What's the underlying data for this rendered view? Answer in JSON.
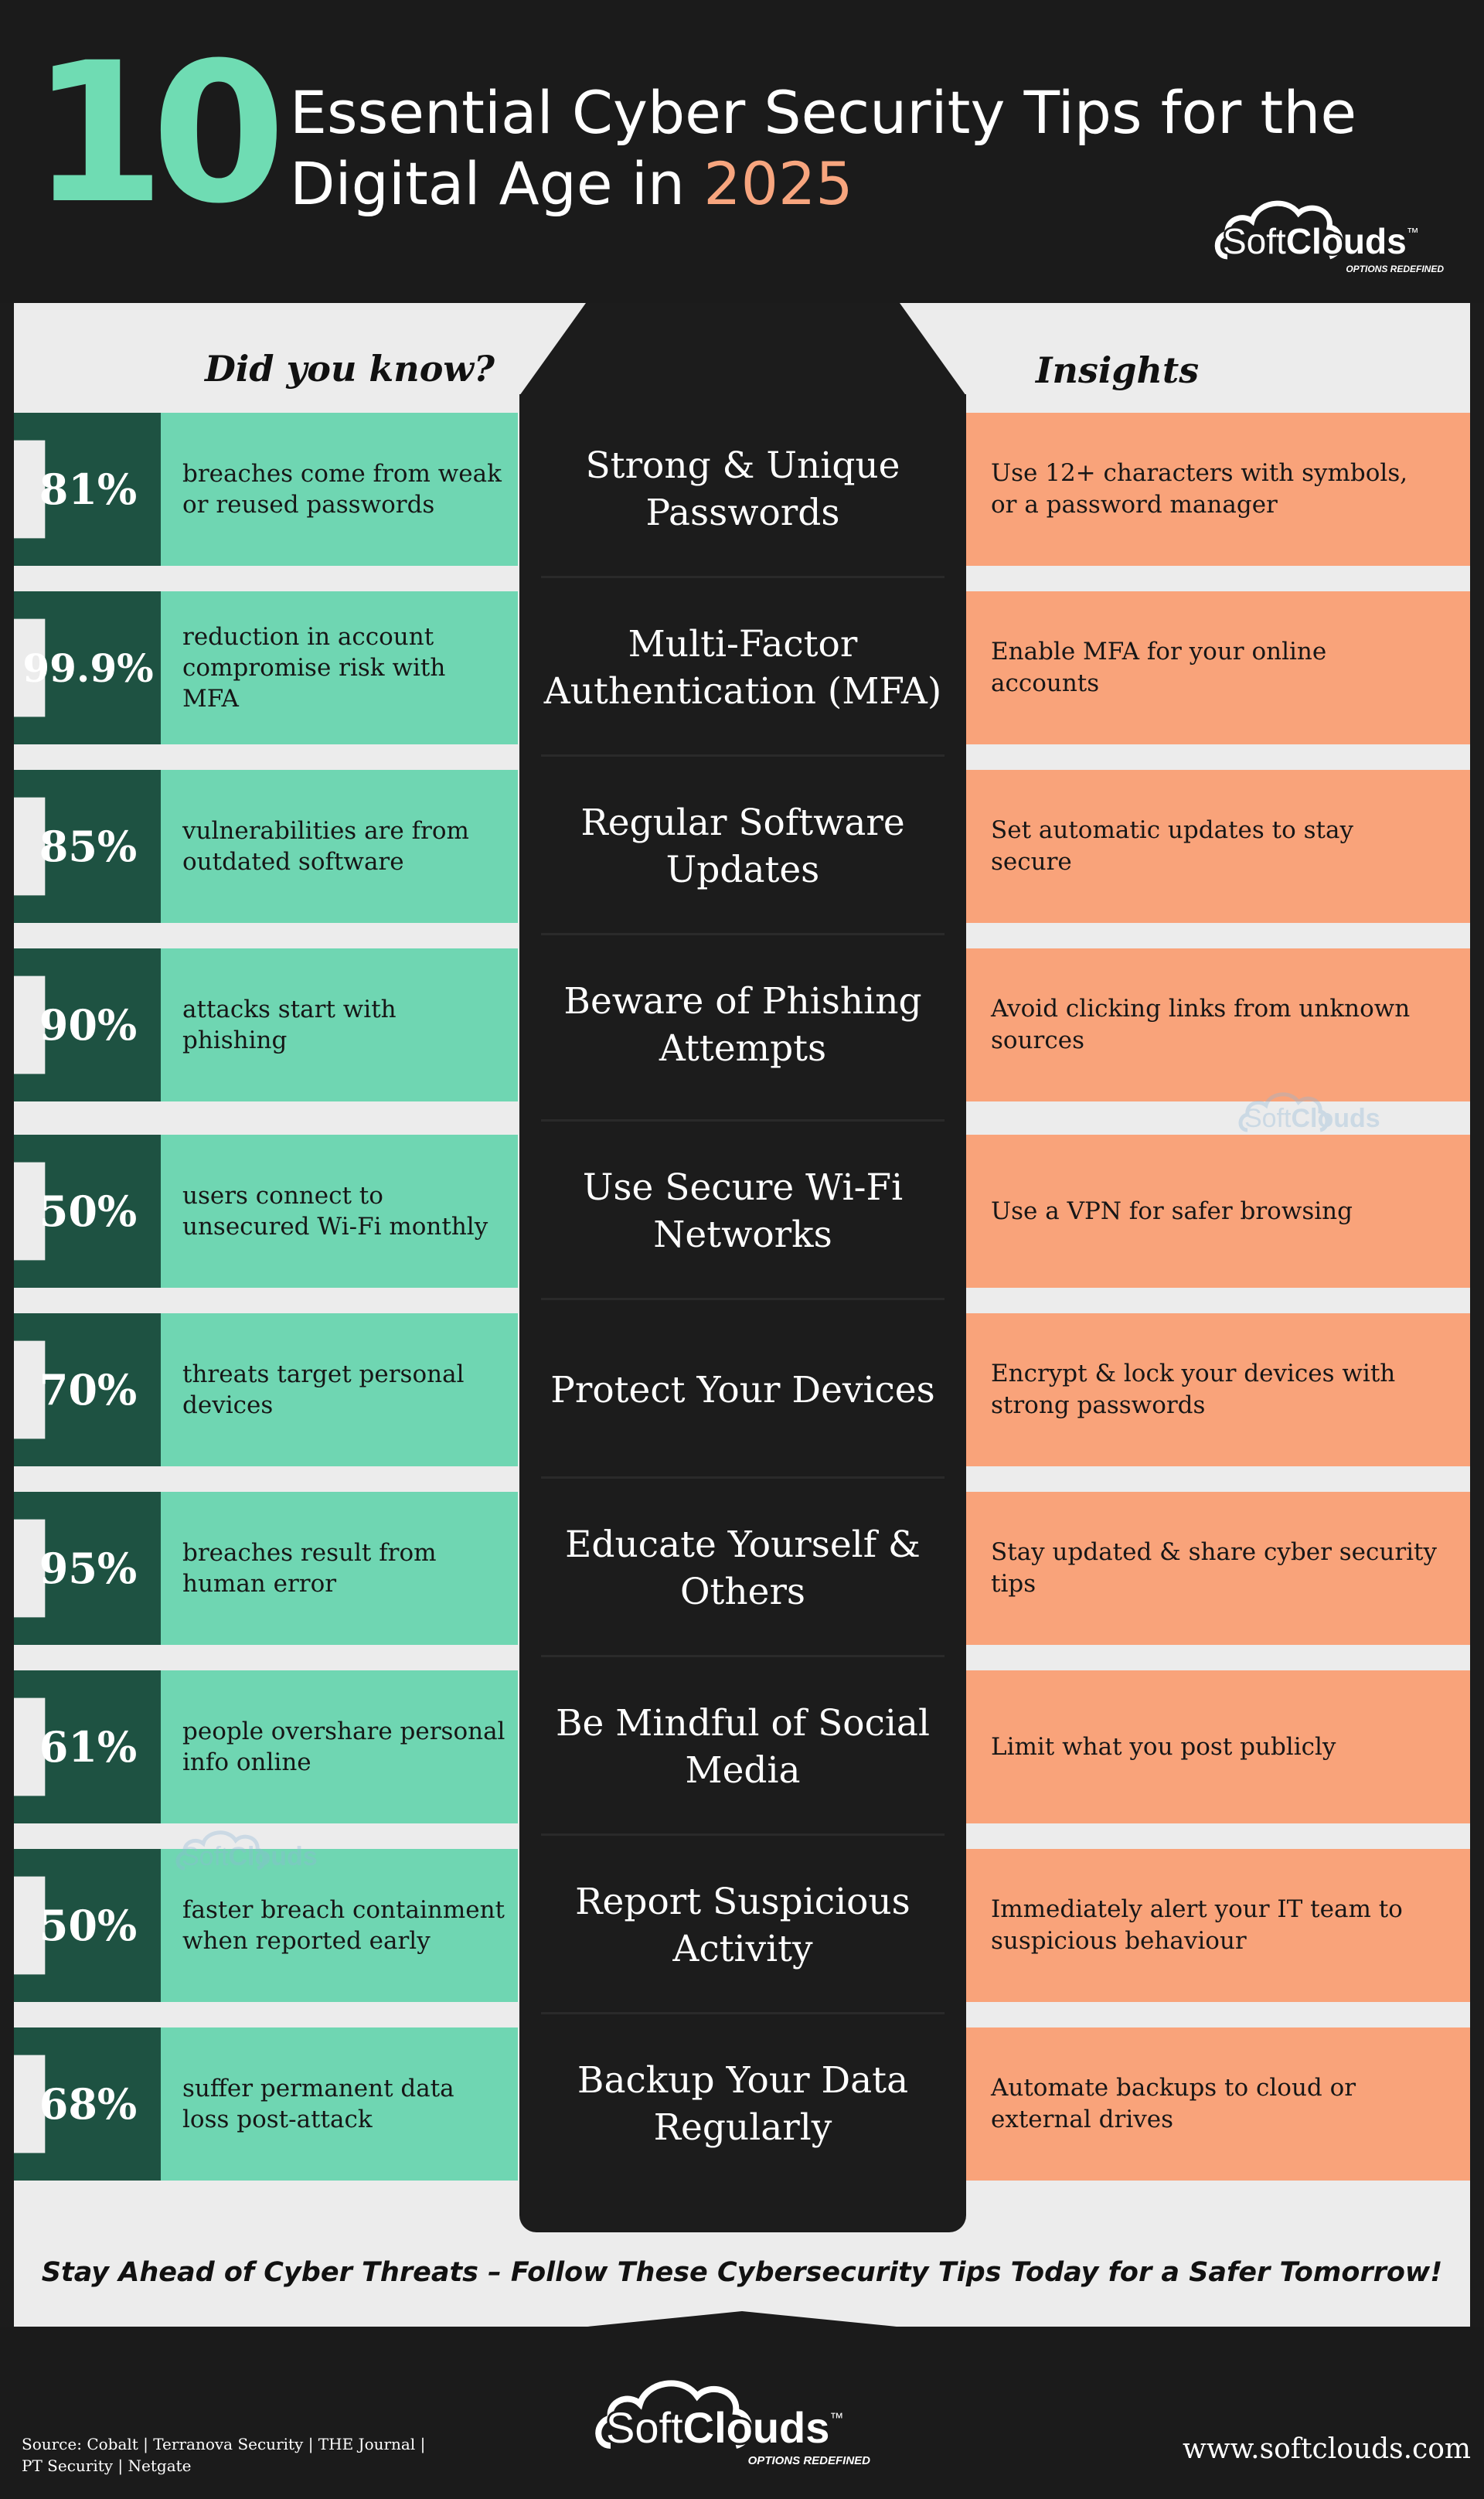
{
  "header": {
    "number": "10",
    "title_part1": "Essential Cyber Security Tips for the",
    "title_part2": "Digital Age in",
    "title_year": "2025"
  },
  "brand": {
    "soft": "Soft",
    "clouds": "Clouds",
    "tm": "™",
    "tagline": "OPTIONS REDEFINED"
  },
  "left_header": "Did you know?",
  "right_header": "Insights",
  "rows": [
    {
      "pct": "81%",
      "fact": "breaches come from weak or reused passwords",
      "tip": "Strong & Unique Passwords",
      "insight": "Use 12+ characters with symbols, or a password manager"
    },
    {
      "pct": "99.9%",
      "fact": "reduction in account compromise risk with MFA",
      "tip": "Multi-Factor Authentication (MFA)",
      "insight": "Enable MFA for your online accounts"
    },
    {
      "pct": "85%",
      "fact": "vulnerabilities are from outdated software",
      "tip": "Regular Software Updates",
      "insight": "Set automatic updates to stay secure"
    },
    {
      "pct": "90%",
      "fact": "attacks start with phishing",
      "tip": "Beware of Phishing Attempts",
      "insight": "Avoid clicking links from unknown sources"
    },
    {
      "pct": "50%",
      "fact": "users connect to unsecured Wi-Fi monthly",
      "tip": "Use Secure Wi-Fi Networks",
      "insight": "Use a VPN for safer browsing"
    },
    {
      "pct": "70%",
      "fact": "threats target personal devices",
      "tip": "Protect Your Devices",
      "insight": "Encrypt & lock your devices with strong passwords"
    },
    {
      "pct": "95%",
      "fact": "breaches result from human error",
      "tip": "Educate Yourself & Others",
      "insight": "Stay updated & share cyber security tips"
    },
    {
      "pct": "61%",
      "fact": "people overshare personal info online",
      "tip": "Be Mindful of Social Media",
      "insight": "Limit what you post publicly"
    },
    {
      "pct": "50%",
      "fact": "faster breach containment when reported early",
      "tip": "Report Suspicious Activity",
      "insight": "Immediately alert your IT team to suspicious behaviour"
    },
    {
      "pct": "68%",
      "fact": "suffer permanent data loss post-attack",
      "tip": "Backup Your Data Regularly",
      "insight": "Automate backups to cloud or external drives"
    }
  ],
  "footer": {
    "cta": "Stay Ahead of Cyber Threats – Follow These Cybersecurity Tips Today for a Safer Tomorrow!",
    "source_line1": "Source: Cobalt | Terranova Security | THE Journal |",
    "source_line2": "PT Security | Netgate",
    "url": "www.softclouds.com"
  },
  "colors": {
    "background": "#1b1b1b",
    "panel": "#ececec",
    "mint": "#6fd6b2",
    "dark_green": "#1e5242",
    "peach": "#f9a37a",
    "accent_year": "#f7a57e"
  }
}
